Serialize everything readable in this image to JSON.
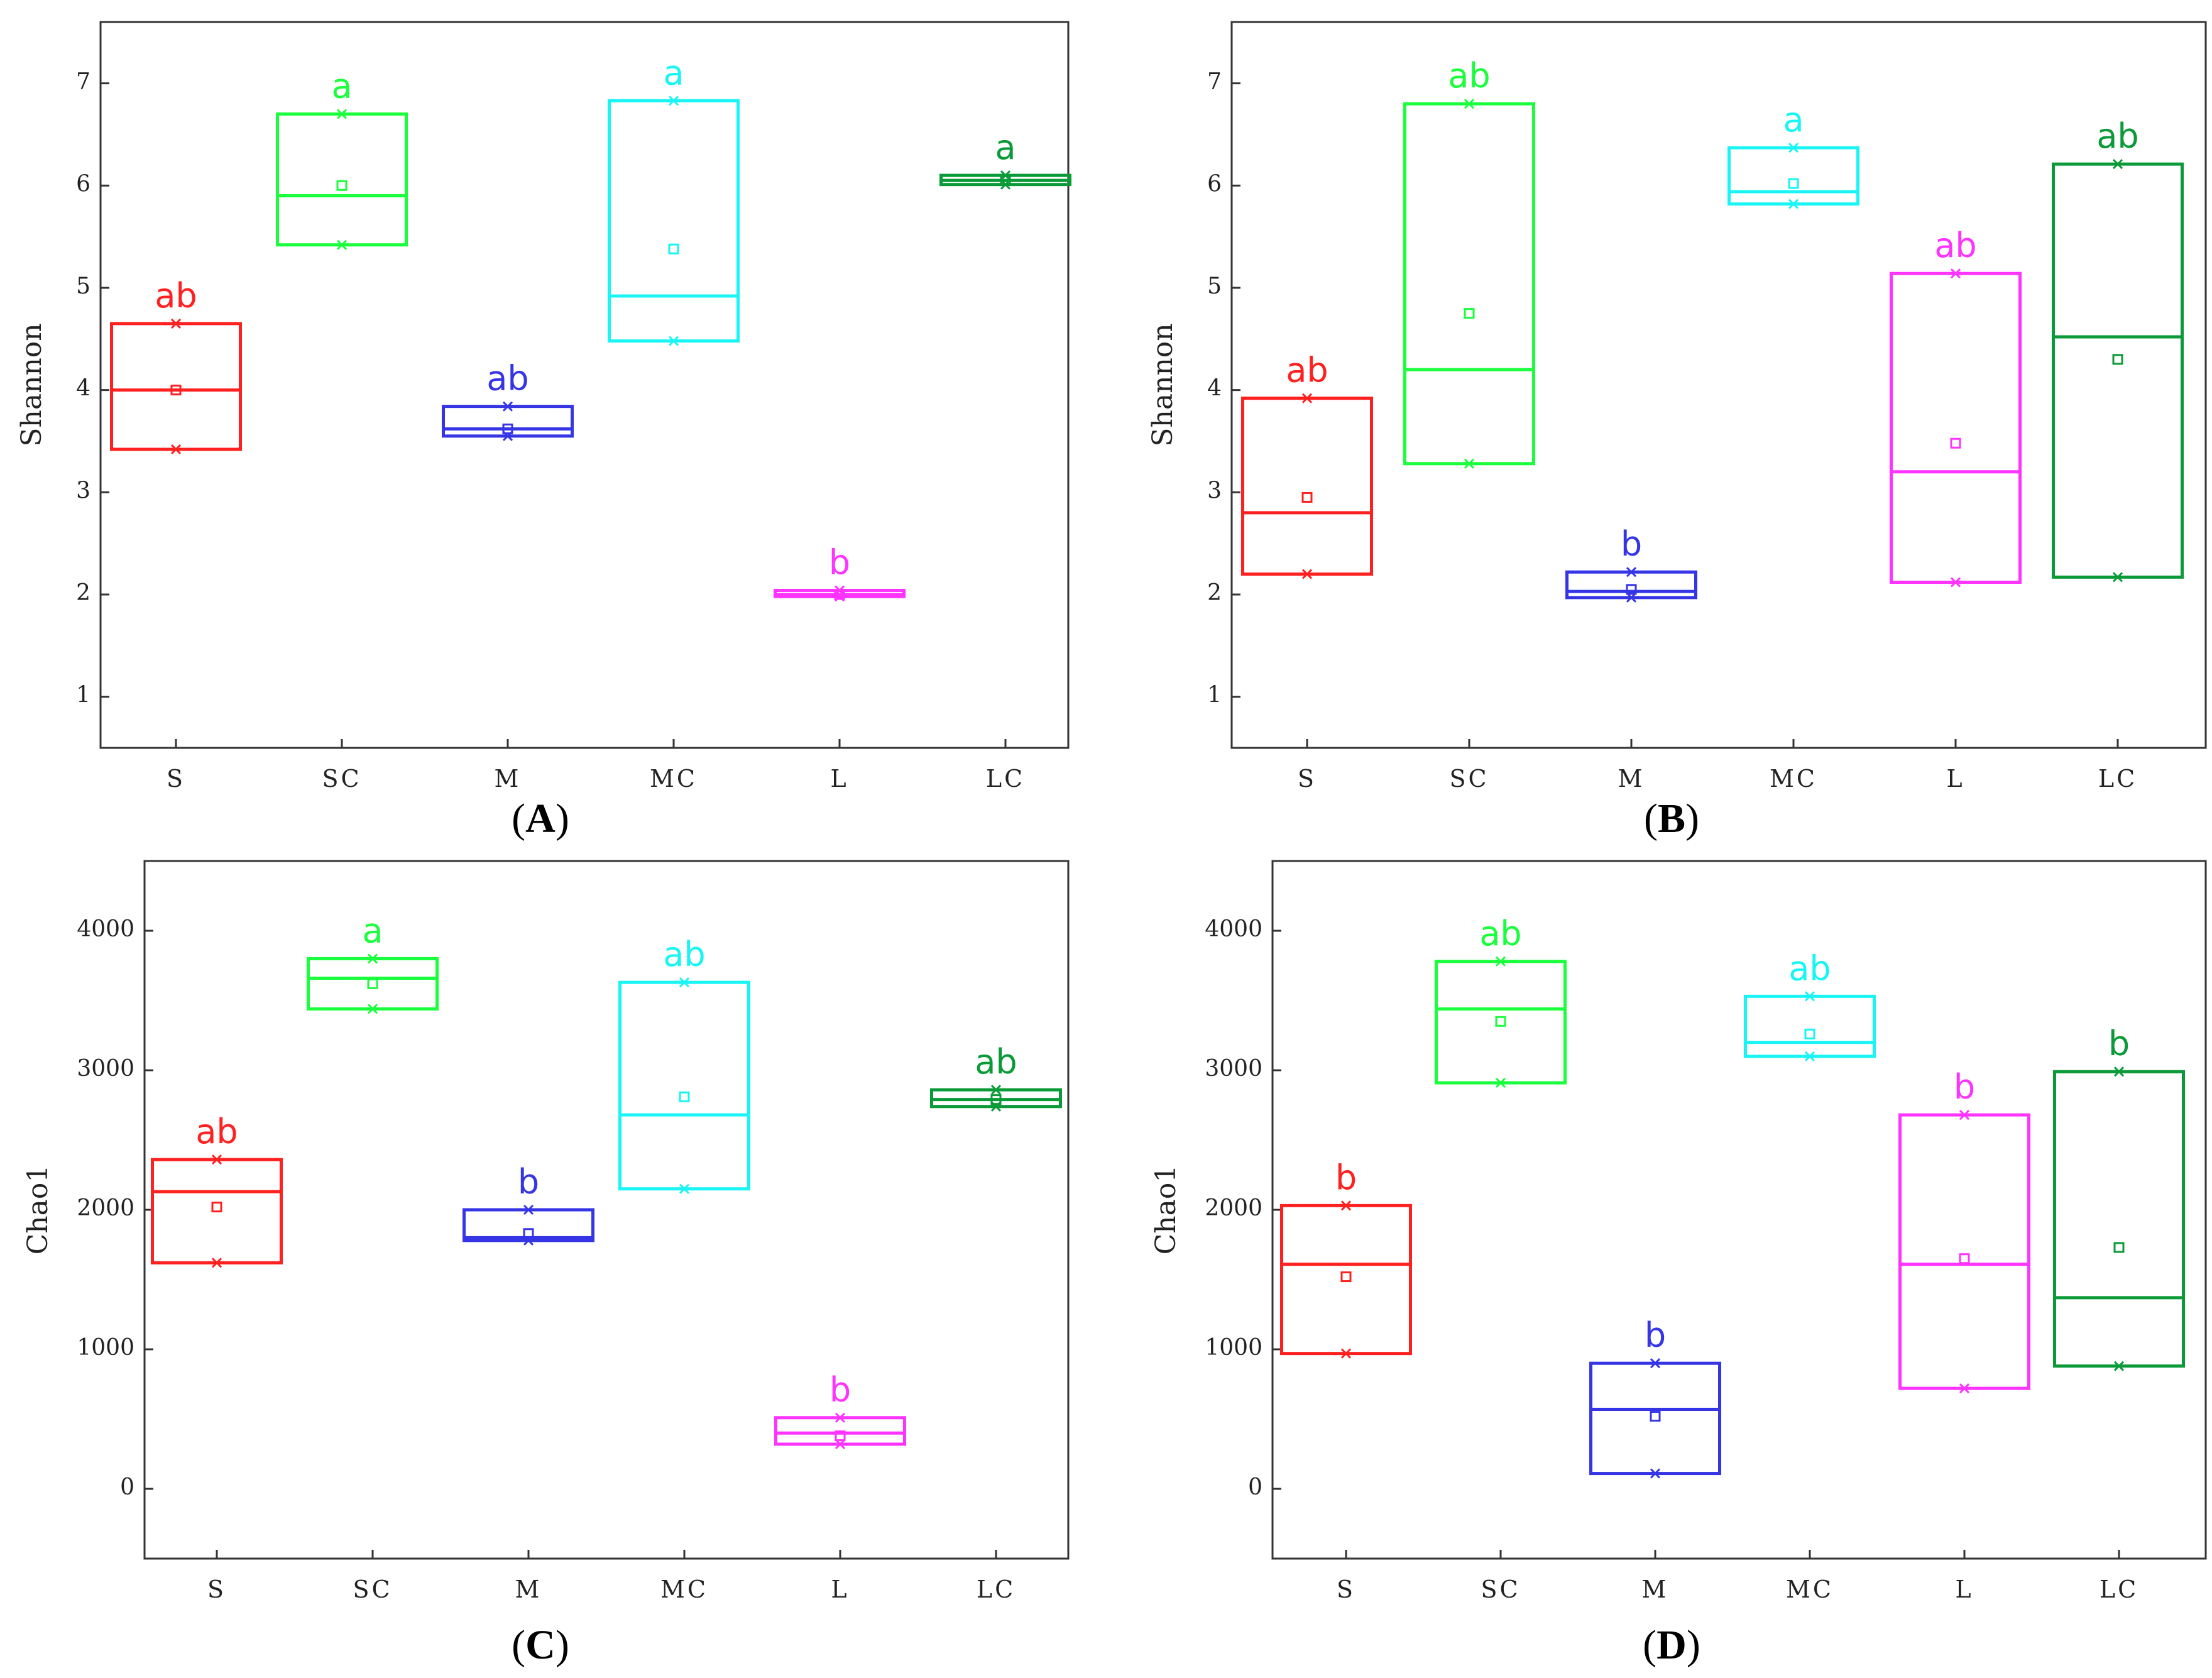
{
  "groups": [
    "S",
    "SC",
    "M",
    "MC",
    "L",
    "LC"
  ],
  "group_colors": {
    "S": "#ff2020",
    "SC": "#1aff3c",
    "M": "#3535e6",
    "MC": "#19f5f5",
    "L": "#ff33ff",
    "LC": "#0a9a38"
  },
  "chart_data": [
    {
      "panel": "A",
      "type": "box",
      "ylabel": "Shannon",
      "ylim": [
        0.5,
        7.6
      ],
      "yticks": [
        1,
        2,
        3,
        4,
        5,
        6,
        7
      ],
      "categories": [
        "S",
        "SC",
        "M",
        "MC",
        "L",
        "LC"
      ],
      "boxes": [
        {
          "group": "S",
          "min": 3.42,
          "q1": 3.42,
          "median": 4.0,
          "q3": 4.65,
          "max": 4.65,
          "mean": 4.0,
          "letter": "ab"
        },
        {
          "group": "SC",
          "min": 5.42,
          "q1": 5.42,
          "median": 5.9,
          "q3": 6.7,
          "max": 6.7,
          "mean": 6.0,
          "letter": "a"
        },
        {
          "group": "M",
          "min": 3.55,
          "q1": 3.55,
          "median": 3.62,
          "q3": 3.84,
          "max": 3.84,
          "mean": 3.62,
          "letter": "ab"
        },
        {
          "group": "MC",
          "min": 4.48,
          "q1": 4.48,
          "median": 4.92,
          "q3": 6.83,
          "max": 6.83,
          "mean": 5.38,
          "letter": "a"
        },
        {
          "group": "L",
          "min": 1.98,
          "q1": 1.98,
          "median": 2.0,
          "q3": 2.04,
          "max": 2.04,
          "mean": 2.0,
          "letter": "b"
        },
        {
          "group": "LC",
          "min": 6.01,
          "q1": 6.01,
          "median": 6.05,
          "q3": 6.1,
          "max": 6.1,
          "mean": 6.05,
          "letter": "a"
        }
      ]
    },
    {
      "panel": "B",
      "type": "box",
      "ylabel": "Shannon",
      "ylim": [
        0.5,
        7.6
      ],
      "yticks": [
        1,
        2,
        3,
        4,
        5,
        6,
        7
      ],
      "categories": [
        "S",
        "SC",
        "M",
        "MC",
        "L",
        "LC"
      ],
      "boxes": [
        {
          "group": "S",
          "min": 2.2,
          "q1": 2.2,
          "median": 2.8,
          "q3": 3.92,
          "max": 3.92,
          "mean": 2.95,
          "letter": "ab"
        },
        {
          "group": "SC",
          "min": 3.28,
          "q1": 3.28,
          "median": 4.2,
          "q3": 6.8,
          "max": 6.8,
          "mean": 4.75,
          "letter": "ab"
        },
        {
          "group": "M",
          "min": 1.97,
          "q1": 1.97,
          "median": 2.03,
          "q3": 2.22,
          "max": 2.22,
          "mean": 2.05,
          "letter": "b"
        },
        {
          "group": "MC",
          "min": 5.82,
          "q1": 5.82,
          "median": 5.94,
          "q3": 6.37,
          "max": 6.37,
          "mean": 6.02,
          "letter": "a"
        },
        {
          "group": "L",
          "min": 2.12,
          "q1": 2.12,
          "median": 3.2,
          "q3": 5.14,
          "max": 5.14,
          "mean": 3.48,
          "letter": "ab"
        },
        {
          "group": "LC",
          "min": 2.17,
          "q1": 2.17,
          "median": 4.52,
          "q3": 6.21,
          "max": 6.21,
          "mean": 4.3,
          "letter": "ab"
        }
      ]
    },
    {
      "panel": "C",
      "type": "box",
      "ylabel": "Chao1",
      "ylim": [
        -500,
        4500
      ],
      "yticks": [
        0,
        1000,
        2000,
        3000,
        4000
      ],
      "categories": [
        "S",
        "SC",
        "M",
        "MC",
        "L",
        "LC"
      ],
      "boxes": [
        {
          "group": "S",
          "min": 1620,
          "q1": 1620,
          "median": 2130,
          "q3": 2360,
          "max": 2360,
          "mean": 2020,
          "letter": "ab"
        },
        {
          "group": "SC",
          "min": 3440,
          "q1": 3440,
          "median": 3660,
          "q3": 3800,
          "max": 3800,
          "mean": 3620,
          "letter": "a"
        },
        {
          "group": "M",
          "min": 1780,
          "q1": 1780,
          "median": 1800,
          "q3": 2000,
          "max": 2000,
          "mean": 1830,
          "letter": "b"
        },
        {
          "group": "MC",
          "min": 2150,
          "q1": 2150,
          "median": 2680,
          "q3": 3630,
          "max": 3630,
          "mean": 2810,
          "letter": "ab"
        },
        {
          "group": "L",
          "min": 320,
          "q1": 320,
          "median": 400,
          "q3": 510,
          "max": 510,
          "mean": 380,
          "letter": "b"
        },
        {
          "group": "LC",
          "min": 2740,
          "q1": 2740,
          "median": 2790,
          "q3": 2860,
          "max": 2860,
          "mean": 2790,
          "letter": "ab"
        }
      ]
    },
    {
      "panel": "D",
      "type": "box",
      "ylabel": "Chao1",
      "ylim": [
        -500,
        4500
      ],
      "yticks": [
        0,
        1000,
        2000,
        3000,
        4000
      ],
      "categories": [
        "S",
        "SC",
        "M",
        "MC",
        "L",
        "LC"
      ],
      "boxes": [
        {
          "group": "S",
          "min": 970,
          "q1": 970,
          "median": 1610,
          "q3": 2030,
          "max": 2030,
          "mean": 1520,
          "letter": "b"
        },
        {
          "group": "SC",
          "min": 2910,
          "q1": 2910,
          "median": 3440,
          "q3": 3780,
          "max": 3780,
          "mean": 3350,
          "letter": "ab"
        },
        {
          "group": "M",
          "min": 110,
          "q1": 110,
          "median": 570,
          "q3": 900,
          "max": 900,
          "mean": 520,
          "letter": "b"
        },
        {
          "group": "MC",
          "min": 3100,
          "q1": 3100,
          "median": 3200,
          "q3": 3530,
          "max": 3530,
          "mean": 3260,
          "letter": "ab"
        },
        {
          "group": "L",
          "min": 720,
          "q1": 720,
          "median": 1610,
          "q3": 2680,
          "max": 2680,
          "mean": 1650,
          "letter": "b"
        },
        {
          "group": "LC",
          "min": 880,
          "q1": 880,
          "median": 1370,
          "q3": 2990,
          "max": 2990,
          "mean": 1730,
          "letter": "b"
        }
      ]
    }
  ]
}
